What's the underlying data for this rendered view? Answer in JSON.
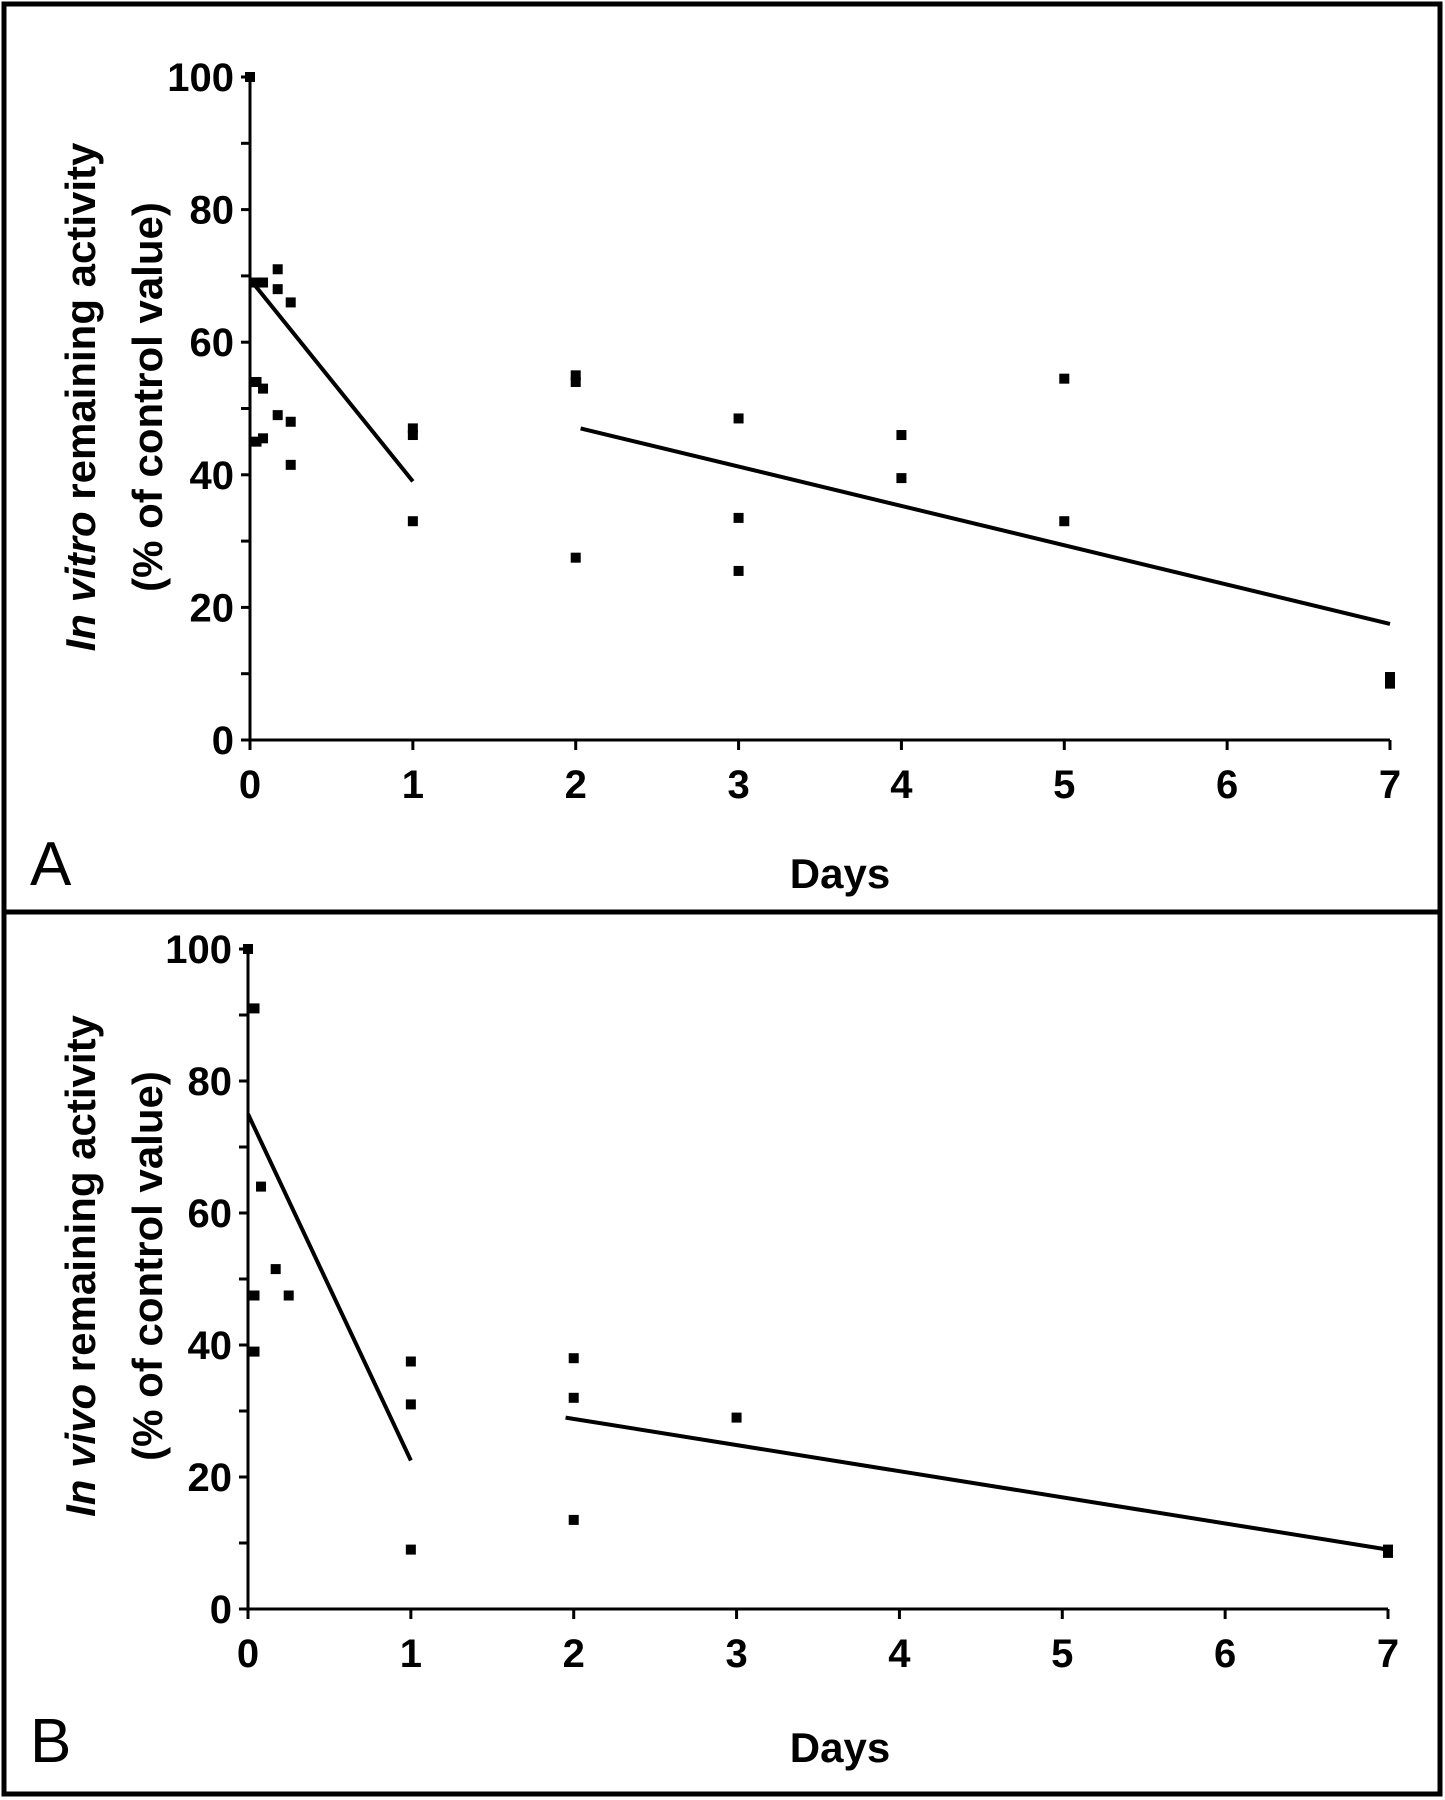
{
  "chart_data": [
    {
      "type": "scatter",
      "panel_label": "A",
      "ylabel_italic": "In vitro",
      "ylabel_rest": " remaining activity",
      "ylabel_line2": "(% of control value)",
      "xlabel": "Days",
      "xlim": [
        0,
        7
      ],
      "ylim": [
        0,
        100
      ],
      "xticks": [
        0,
        1,
        2,
        3,
        4,
        5,
        6,
        7
      ],
      "yticks": [
        0,
        20,
        40,
        60,
        80,
        100
      ],
      "points": [
        {
          "x": 0,
          "y": 100
        },
        {
          "x": 0.04,
          "y": 69
        },
        {
          "x": 0.08,
          "y": 69
        },
        {
          "x": 0.17,
          "y": 71
        },
        {
          "x": 0.17,
          "y": 68
        },
        {
          "x": 0.25,
          "y": 66
        },
        {
          "x": 0.04,
          "y": 54
        },
        {
          "x": 0.08,
          "y": 53
        },
        {
          "x": 0.17,
          "y": 49
        },
        {
          "x": 0.25,
          "y": 48
        },
        {
          "x": 0.04,
          "y": 45
        },
        {
          "x": 0.08,
          "y": 45.5
        },
        {
          "x": 0.25,
          "y": 41.5
        },
        {
          "x": 1,
          "y": 47
        },
        {
          "x": 1,
          "y": 46
        },
        {
          "x": 1,
          "y": 33
        },
        {
          "x": 2,
          "y": 55
        },
        {
          "x": 2,
          "y": 54
        },
        {
          "x": 2,
          "y": 27.5
        },
        {
          "x": 3,
          "y": 48.5
        },
        {
          "x": 3,
          "y": 33.5
        },
        {
          "x": 3,
          "y": 25.5
        },
        {
          "x": 4,
          "y": 46
        },
        {
          "x": 4,
          "y": 39.5
        },
        {
          "x": 5,
          "y": 54.5
        },
        {
          "x": 5,
          "y": 33
        },
        {
          "x": 7,
          "y": 9.5
        },
        {
          "x": 7,
          "y": 8.5
        }
      ],
      "fit_lines": [
        {
          "x": [
            0,
            1
          ],
          "y": [
            69.5,
            39
          ]
        },
        {
          "x": [
            2.03,
            7
          ],
          "y": [
            47,
            17.5
          ]
        }
      ]
    },
    {
      "type": "scatter",
      "panel_label": "B",
      "ylabel_italic": "In vivo",
      "ylabel_rest": " remaining activity",
      "ylabel_line2": "(% of control value)",
      "xlabel": "Days",
      "xlim": [
        0,
        7
      ],
      "ylim": [
        0,
        100
      ],
      "xticks": [
        0,
        1,
        2,
        3,
        4,
        5,
        6,
        7
      ],
      "yticks": [
        0,
        20,
        40,
        60,
        80,
        100
      ],
      "points": [
        {
          "x": 0,
          "y": 100
        },
        {
          "x": 0.04,
          "y": 91
        },
        {
          "x": 0.08,
          "y": 64
        },
        {
          "x": 0.17,
          "y": 51.5
        },
        {
          "x": 0.25,
          "y": 47.5
        },
        {
          "x": 0.04,
          "y": 47.5
        },
        {
          "x": 0.04,
          "y": 39
        },
        {
          "x": 1,
          "y": 37.5
        },
        {
          "x": 1,
          "y": 31
        },
        {
          "x": 1,
          "y": 9
        },
        {
          "x": 2,
          "y": 38
        },
        {
          "x": 2,
          "y": 32
        },
        {
          "x": 2,
          "y": 13.5
        },
        {
          "x": 3,
          "y": 29
        },
        {
          "x": 7,
          "y": 9
        },
        {
          "x": 7,
          "y": 8.5
        }
      ],
      "fit_lines": [
        {
          "x": [
            0,
            1
          ],
          "y": [
            75,
            22.5
          ]
        },
        {
          "x": [
            1.95,
            7
          ],
          "y": [
            29,
            9
          ]
        }
      ]
    }
  ]
}
